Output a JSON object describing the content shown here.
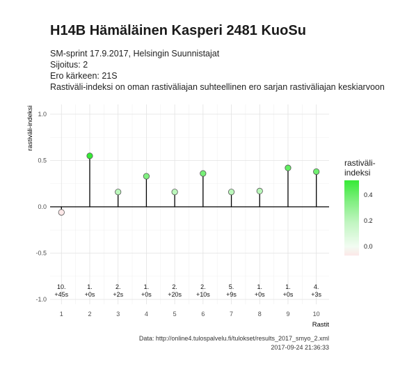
{
  "header": {
    "title": "H14B Hämäläinen Kasperi 2481 KuoSu",
    "subtitle_lines": [
      "SM-sprint 17.9.2017, Helsingin Suunnistajat",
      "Sijoitus: 2",
      "Ero kärkeen: 21S",
      "Rastiväli-indeksi on oman rastiväliajan suhteellinen ero sarjan rastiväliajan keskiarvoon"
    ]
  },
  "legend": {
    "title_line1": "rastiväli-",
    "title_line2": "indeksi",
    "ticks": [
      "0.4",
      "0.2",
      "0.0"
    ],
    "tick_values": [
      0.4,
      0.2,
      0.0
    ],
    "gradient_colors": [
      "#fce8e8",
      "#f2fcf2",
      "#bff5bf",
      "#36ea36"
    ]
  },
  "caption": {
    "line1": "Data: http://online4.tulospalvelu.fi/tulokset/results_2017_smyo_2.xml",
    "line2": "2017-09-24 21:36:33"
  },
  "chart_data": {
    "type": "scatter",
    "style": "lollipop",
    "xlabel": "Rastit",
    "ylabel": "rastiväli-indeksi",
    "x": [
      1,
      2,
      3,
      4,
      5,
      6,
      7,
      8,
      9,
      10
    ],
    "y": [
      -0.06,
      0.55,
      0.16,
      0.33,
      0.16,
      0.36,
      0.16,
      0.17,
      0.42,
      0.38
    ],
    "xlim": [
      0.6,
      10.45
    ],
    "ylim": [
      -1.0,
      1.0
    ],
    "yticks": [
      -1.0,
      -0.5,
      0.0,
      0.5,
      1.0
    ],
    "ytick_labels": [
      "-1.0",
      "-0.5",
      "0.0",
      "0.5",
      "1.0"
    ],
    "xticks": [
      1,
      2,
      3,
      4,
      5,
      6,
      7,
      8,
      9,
      10
    ],
    "xtick_labels": [
      "1",
      "2",
      "3",
      "4",
      "5",
      "6",
      "7",
      "8",
      "9",
      "10"
    ],
    "point_labels": [
      [
        "10.",
        "+45s"
      ],
      [
        "1.",
        "+0s"
      ],
      [
        "2.",
        "+2s"
      ],
      [
        "1.",
        "+0s"
      ],
      [
        "2.",
        "+20s"
      ],
      [
        "2.",
        "+10s"
      ],
      [
        "5.",
        "+9s"
      ],
      [
        "1.",
        "+0s"
      ],
      [
        "1.",
        "+0s"
      ],
      [
        "4.",
        "+3s"
      ]
    ],
    "grid": true,
    "legend_position": "right",
    "colors": {
      "positive_max": "#36ea36",
      "zero": "#f2fcf2",
      "negative": "#fce8e8"
    }
  }
}
